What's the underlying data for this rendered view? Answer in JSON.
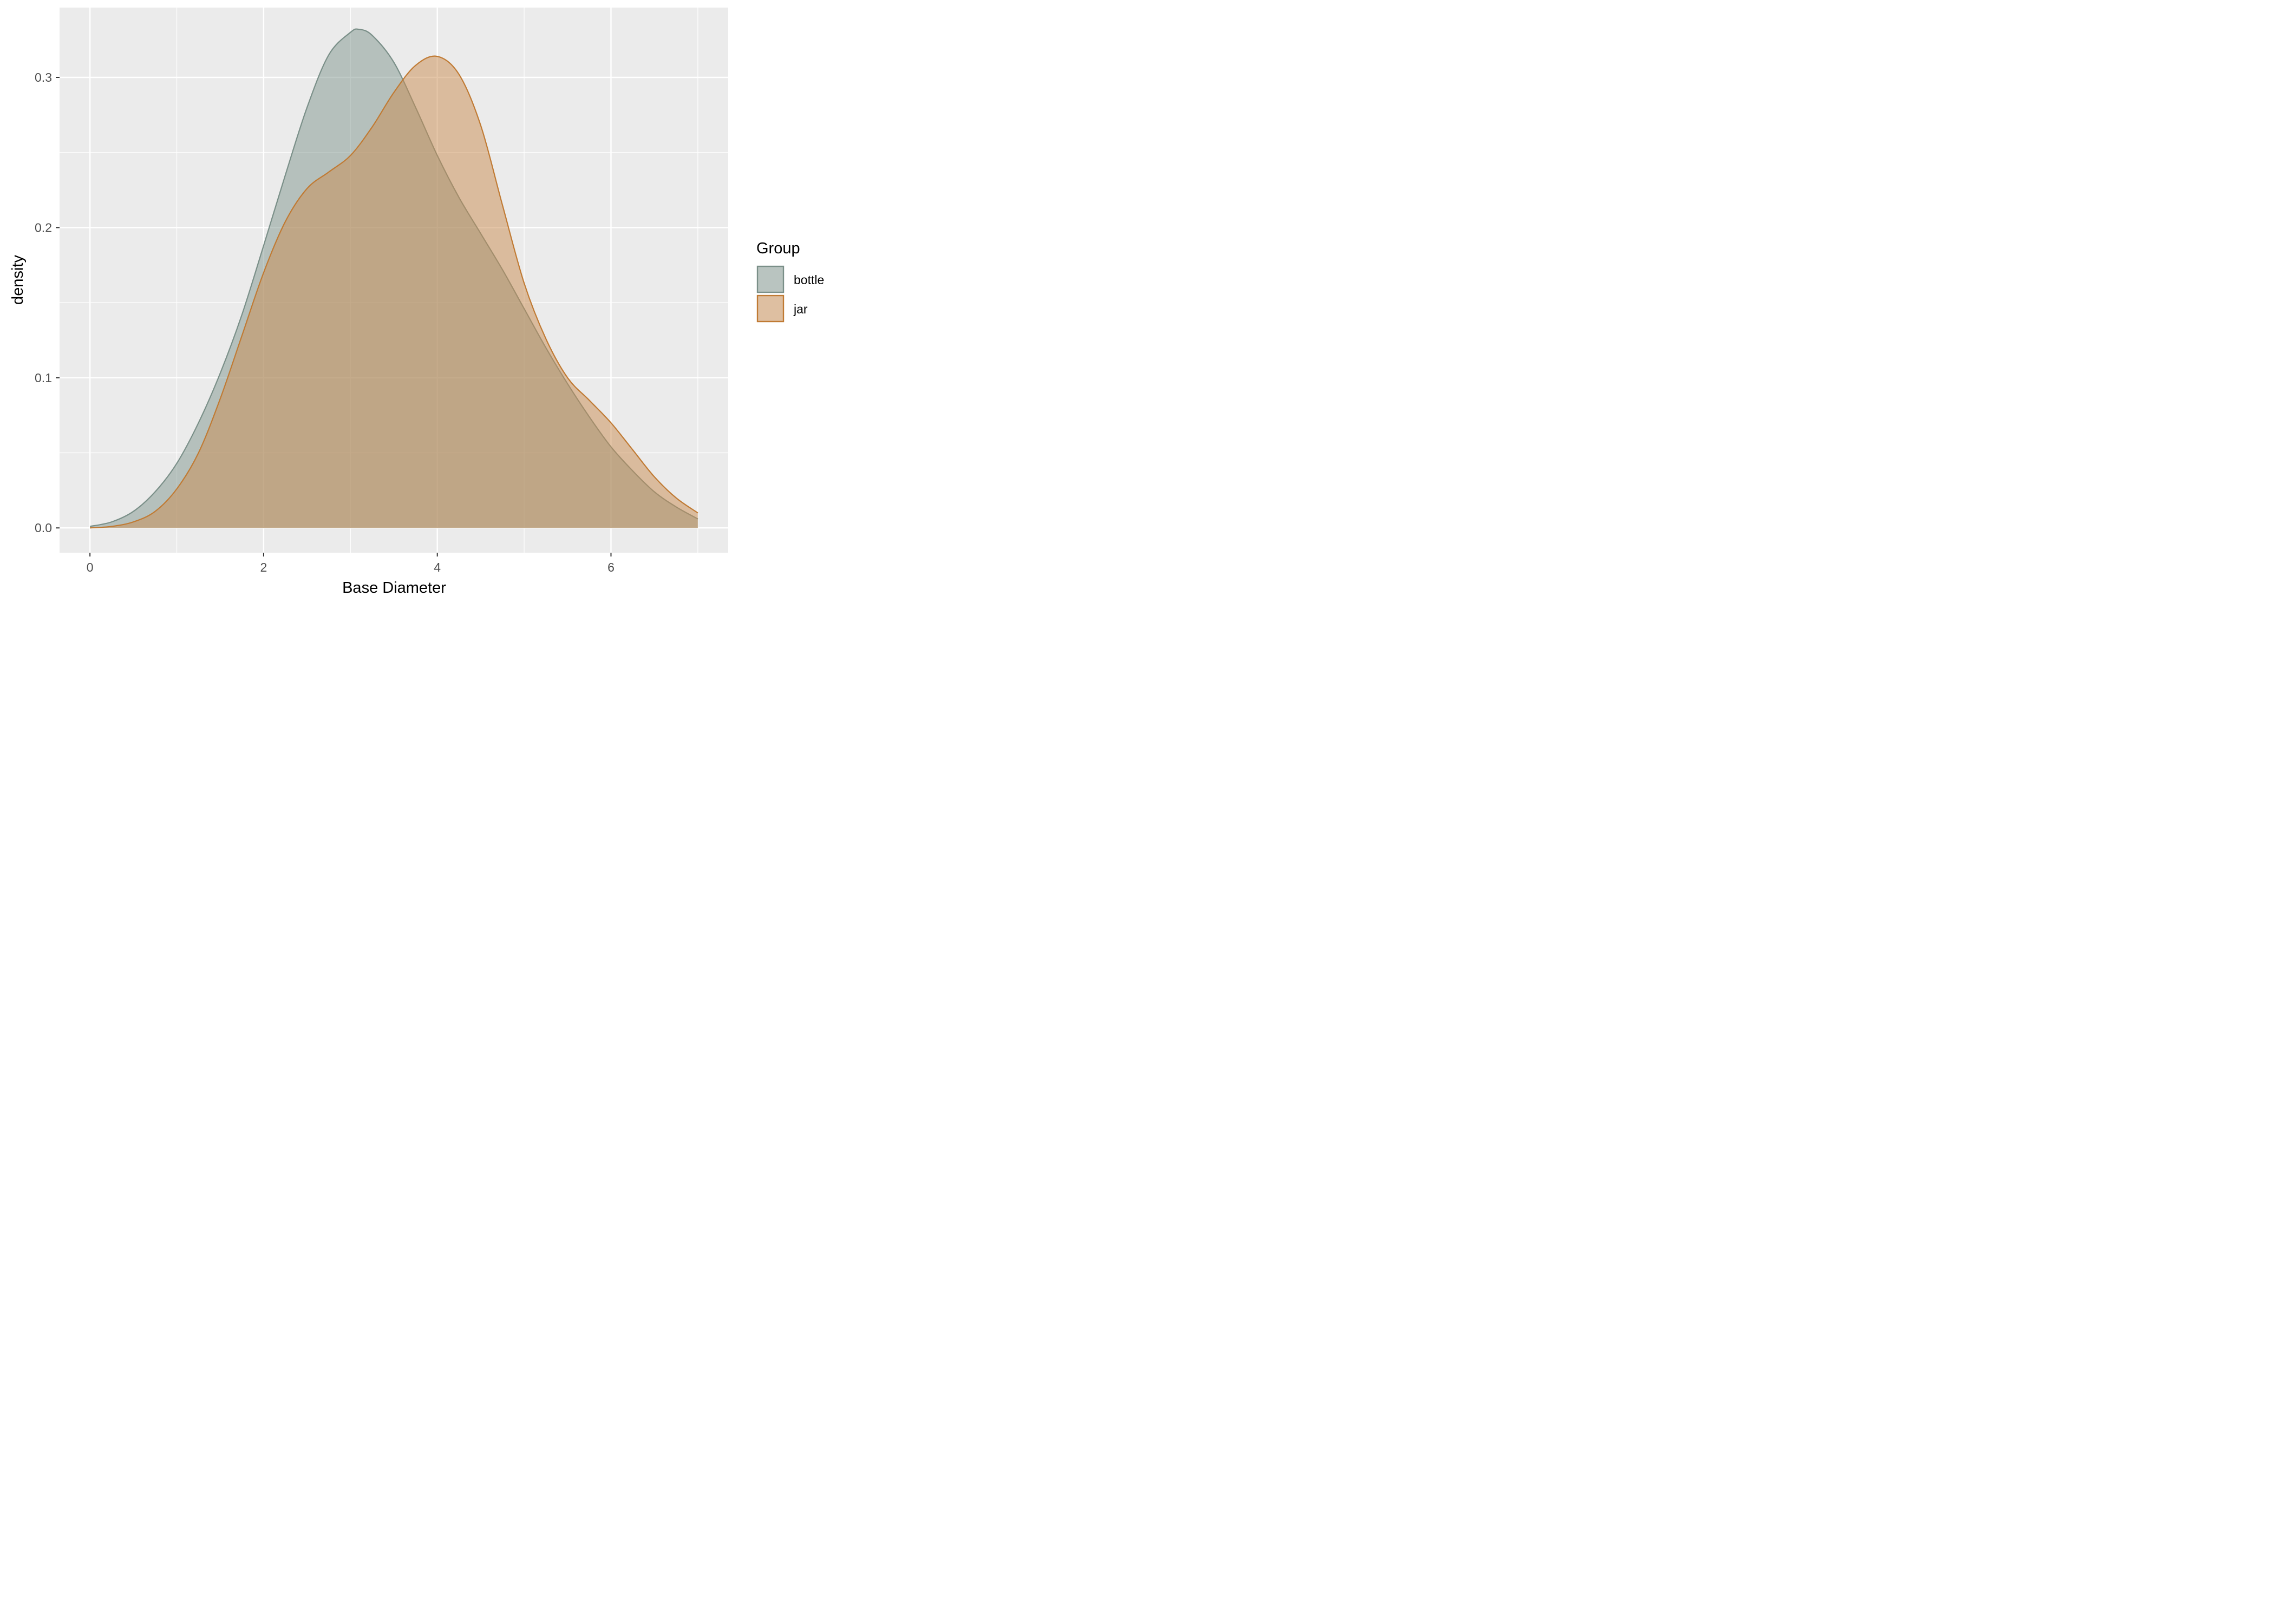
{
  "chart_data": {
    "type": "area",
    "xlabel": "Base Diameter",
    "ylabel": "density",
    "xlim": [
      -0.35,
      7.35
    ],
    "ylim": [
      -0.0165,
      0.3465
    ],
    "x_ticks": [
      0,
      2,
      4,
      6
    ],
    "x_tick_labels": [
      "0",
      "2",
      "4",
      "6"
    ],
    "y_ticks": [
      0.0,
      0.1,
      0.2,
      0.3
    ],
    "y_tick_labels": [
      "0.0",
      "0.1",
      "0.2",
      "0.3"
    ],
    "x_minor_ticks": [
      1,
      3,
      5,
      7
    ],
    "y_minor_ticks": [
      0.05,
      0.15,
      0.25
    ],
    "grid": true,
    "legend": {
      "title": "Group",
      "placement": "right"
    },
    "series": [
      {
        "name": "bottle",
        "fill": "#7f958d",
        "stroke": "#7a8f88",
        "x": [
          0,
          0.25,
          0.5,
          0.75,
          1.0,
          1.25,
          1.5,
          1.75,
          2.0,
          2.25,
          2.5,
          2.75,
          3.0,
          3.1,
          3.25,
          3.5,
          3.75,
          4.0,
          4.25,
          4.5,
          4.75,
          5.0,
          5.25,
          5.5,
          5.75,
          6.0,
          6.25,
          6.5,
          6.75,
          7.0
        ],
        "y": [
          0.001,
          0.004,
          0.011,
          0.024,
          0.043,
          0.07,
          0.103,
          0.142,
          0.188,
          0.235,
          0.28,
          0.315,
          0.33,
          0.332,
          0.328,
          0.31,
          0.28,
          0.248,
          0.22,
          0.196,
          0.172,
          0.146,
          0.12,
          0.096,
          0.074,
          0.054,
          0.038,
          0.024,
          0.014,
          0.006
        ]
      },
      {
        "name": "jar",
        "fill": "#c98c50",
        "stroke": "#c07a33",
        "x": [
          0,
          0.25,
          0.5,
          0.75,
          1.0,
          1.25,
          1.5,
          1.75,
          2.0,
          2.25,
          2.5,
          2.75,
          3.0,
          3.25,
          3.5,
          3.75,
          4.0,
          4.25,
          4.5,
          4.75,
          5.0,
          5.25,
          5.5,
          5.75,
          6.0,
          6.25,
          6.5,
          6.75,
          7.0
        ],
        "y": [
          0.0,
          0.001,
          0.004,
          0.011,
          0.026,
          0.05,
          0.086,
          0.128,
          0.17,
          0.204,
          0.226,
          0.237,
          0.248,
          0.267,
          0.29,
          0.308,
          0.314,
          0.302,
          0.268,
          0.215,
          0.163,
          0.126,
          0.1,
          0.085,
          0.07,
          0.052,
          0.034,
          0.02,
          0.01
        ]
      }
    ]
  }
}
